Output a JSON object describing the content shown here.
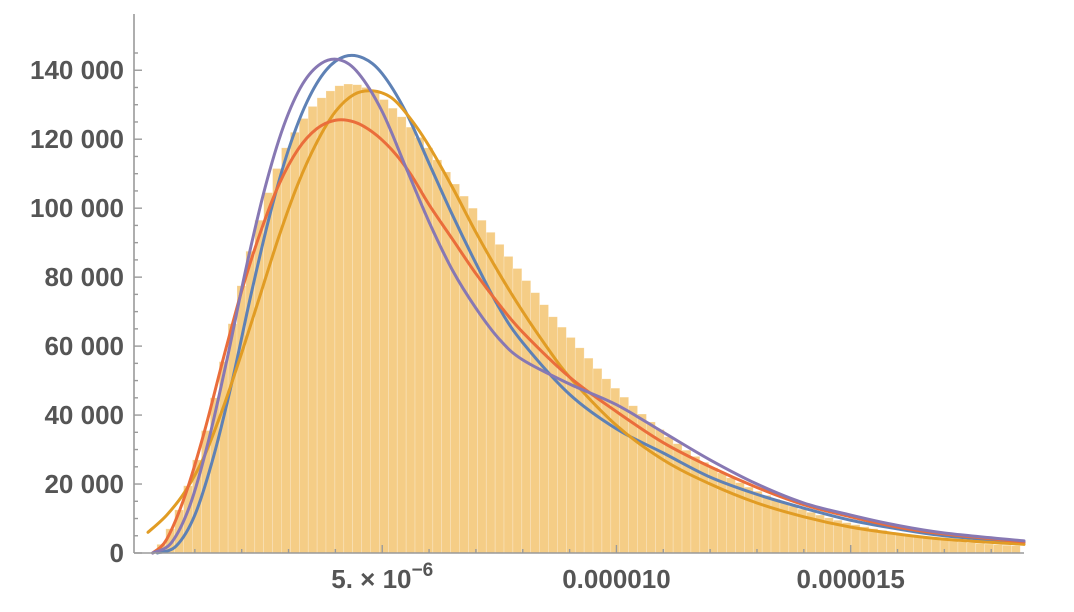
{
  "chart_data": {
    "type": "bar",
    "title": "",
    "xlabel": "",
    "ylabel": "",
    "xlim": [
      0,
      1.87e-05
    ],
    "ylim": [
      0,
      145000
    ],
    "grid": false,
    "legend": "none",
    "y_ticks": [
      {
        "value": 0,
        "label": "0"
      },
      {
        "value": 20000,
        "label": "20 000"
      },
      {
        "value": 40000,
        "label": "40 000"
      },
      {
        "value": 60000,
        "label": "60 000"
      },
      {
        "value": 80000,
        "label": "80 000"
      },
      {
        "value": 100000,
        "label": "100 000"
      },
      {
        "value": 120000,
        "label": "120 000"
      },
      {
        "value": 140000,
        "label": "140 000"
      }
    ],
    "x_ticks": [
      {
        "value": 5e-06,
        "mantissa": "5.",
        "times": "×",
        "base": "10",
        "exponent": "−6"
      },
      {
        "value": 1e-05,
        "label": "0.000010"
      },
      {
        "value": 1.5e-05,
        "label": "0.000015"
      }
    ],
    "histogram": {
      "color": "#f5cd86",
      "bin_width": 1.9e-07,
      "bins_start": 0,
      "values": [
        0,
        2500,
        7000,
        12500,
        19500,
        27000,
        35500,
        45000,
        55500,
        66500,
        77500,
        87500,
        96500,
        104500,
        111500,
        117500,
        122000,
        126000,
        129500,
        132000,
        134000,
        135500,
        136000,
        135800,
        135000,
        133500,
        131500,
        129000,
        126500,
        123500,
        120500,
        117500,
        114000,
        110500,
        107000,
        103500,
        100000,
        96500,
        93000,
        89500,
        86000,
        82500,
        79000,
        75500,
        72000,
        68500,
        65500,
        62500,
        59500,
        56500,
        53500,
        50500,
        47800,
        45200,
        42700,
        40300,
        38000,
        35800,
        33700,
        31700,
        29800,
        28000,
        26300,
        24700,
        23200,
        21800,
        20400,
        19100,
        17900,
        16700,
        15600,
        14600,
        13600,
        12700,
        11800,
        11000,
        10200,
        9500,
        8800,
        8200,
        7600,
        7050,
        6550,
        6050,
        5600,
        5200,
        4800,
        4450,
        4100,
        3800,
        3500,
        3250,
        3000,
        2800,
        2600,
        2400,
        2250,
        2100
      ]
    },
    "series": [
      {
        "color": "#5e81b5",
        "points": [
          [
            2e-07,
            0
          ],
          [
            6e-07,
            2000
          ],
          [
            1e-06,
            11000
          ],
          [
            1.4e-06,
            28000
          ],
          [
            1.8e-06,
            50000
          ],
          [
            2.2e-06,
            75000
          ],
          [
            2.6e-06,
            98000
          ],
          [
            3e-06,
            117000
          ],
          [
            3.4e-06,
            131000
          ],
          [
            3.8e-06,
            140000
          ],
          [
            4.2e-06,
            144000
          ],
          [
            4.6e-06,
            143500
          ],
          [
            5e-06,
            139000
          ],
          [
            5.5e-06,
            128000
          ],
          [
            6e-06,
            113000
          ],
          [
            6.5e-06,
            98000
          ],
          [
            7e-06,
            84000
          ],
          [
            7.5e-06,
            71000
          ],
          [
            8e-06,
            61000
          ],
          [
            9e-06,
            46000
          ],
          [
            1e-05,
            36000
          ],
          [
            1.1e-05,
            29000
          ],
          [
            1.2e-05,
            22000
          ],
          [
            1.3e-05,
            17000
          ],
          [
            1.4e-05,
            13000
          ],
          [
            1.5e-05,
            9500
          ],
          [
            1.6e-05,
            7000
          ],
          [
            1.7e-05,
            5000
          ],
          [
            1.87e-05,
            3000
          ]
        ]
      },
      {
        "color": "#e19c24",
        "points": [
          [
            0.0,
            6000
          ],
          [
            4e-07,
            11000
          ],
          [
            8e-07,
            18000
          ],
          [
            1.2e-06,
            28000
          ],
          [
            1.6e-06,
            42000
          ],
          [
            2e-06,
            58000
          ],
          [
            2.4e-06,
            75000
          ],
          [
            2.8e-06,
            92000
          ],
          [
            3.2e-06,
            107000
          ],
          [
            3.6e-06,
            119000
          ],
          [
            4e-06,
            128000
          ],
          [
            4.4e-06,
            133000
          ],
          [
            4.8e-06,
            134000
          ],
          [
            5.2e-06,
            132000
          ],
          [
            5.6e-06,
            126000
          ],
          [
            6e-06,
            118000
          ],
          [
            6.5e-06,
            106000
          ],
          [
            7e-06,
            93000
          ],
          [
            7.5e-06,
            81000
          ],
          [
            8e-06,
            70000
          ],
          [
            8.5e-06,
            60000
          ],
          [
            9e-06,
            51000
          ],
          [
            1e-05,
            37000
          ],
          [
            1.1e-05,
            27000
          ],
          [
            1.2e-05,
            20000
          ],
          [
            1.3e-05,
            14500
          ],
          [
            1.4e-05,
            10500
          ],
          [
            1.5e-05,
            7500
          ],
          [
            1.6e-05,
            5500
          ],
          [
            1.7e-05,
            4000
          ],
          [
            1.87e-05,
            2500
          ]
        ]
      },
      {
        "color": "#ea6d3b",
        "points": [
          [
            1e-07,
            0
          ],
          [
            4e-07,
            4000
          ],
          [
            8e-07,
            17000
          ],
          [
            1.2e-06,
            35000
          ],
          [
            1.6e-06,
            56000
          ],
          [
            2e-06,
            76000
          ],
          [
            2.4e-06,
            93000
          ],
          [
            2.8e-06,
            107000
          ],
          [
            3.2e-06,
            117000
          ],
          [
            3.6e-06,
            123000
          ],
          [
            4e-06,
            125500
          ],
          [
            4.4e-06,
            125000
          ],
          [
            4.8e-06,
            122000
          ],
          [
            5.2e-06,
            117000
          ],
          [
            5.6e-06,
            110000
          ],
          [
            6e-06,
            101000
          ],
          [
            6.5e-06,
            91000
          ],
          [
            7e-06,
            81000
          ],
          [
            7.5e-06,
            72000
          ],
          [
            8e-06,
            64000
          ],
          [
            9e-06,
            51000
          ],
          [
            1e-05,
            41000
          ],
          [
            1.1e-05,
            32000
          ],
          [
            1.2e-05,
            25000
          ],
          [
            1.3e-05,
            19000
          ],
          [
            1.4e-05,
            14000
          ],
          [
            1.5e-05,
            10500
          ],
          [
            1.6e-05,
            7500
          ],
          [
            1.7e-05,
            5500
          ],
          [
            1.87e-05,
            3200
          ]
        ]
      },
      {
        "color": "#8778b3",
        "points": [
          [
            1e-07,
            0
          ],
          [
            5e-07,
            3000
          ],
          [
            9e-07,
            14000
          ],
          [
            1.3e-06,
            33000
          ],
          [
            1.7e-06,
            57000
          ],
          [
            2.1e-06,
            83000
          ],
          [
            2.5e-06,
            106000
          ],
          [
            2.9e-06,
            124000
          ],
          [
            3.3e-06,
            136000
          ],
          [
            3.7e-06,
            142000
          ],
          [
            4.1e-06,
            143000
          ],
          [
            4.5e-06,
            139000
          ],
          [
            5e-06,
            128000
          ],
          [
            5.5e-06,
            112000
          ],
          [
            6e-06,
            96000
          ],
          [
            6.5e-06,
            82000
          ],
          [
            7e-06,
            71000
          ],
          [
            7.5e-06,
            62000
          ],
          [
            8e-06,
            56000
          ],
          [
            9e-06,
            49000
          ],
          [
            1e-05,
            43000
          ],
          [
            1.1e-05,
            35000
          ],
          [
            1.2e-05,
            27000
          ],
          [
            1.3e-05,
            20000
          ],
          [
            1.4e-05,
            14500
          ],
          [
            1.5e-05,
            11000
          ],
          [
            1.6e-05,
            8000
          ],
          [
            1.7e-05,
            5800
          ],
          [
            1.87e-05,
            3500
          ]
        ]
      }
    ]
  }
}
